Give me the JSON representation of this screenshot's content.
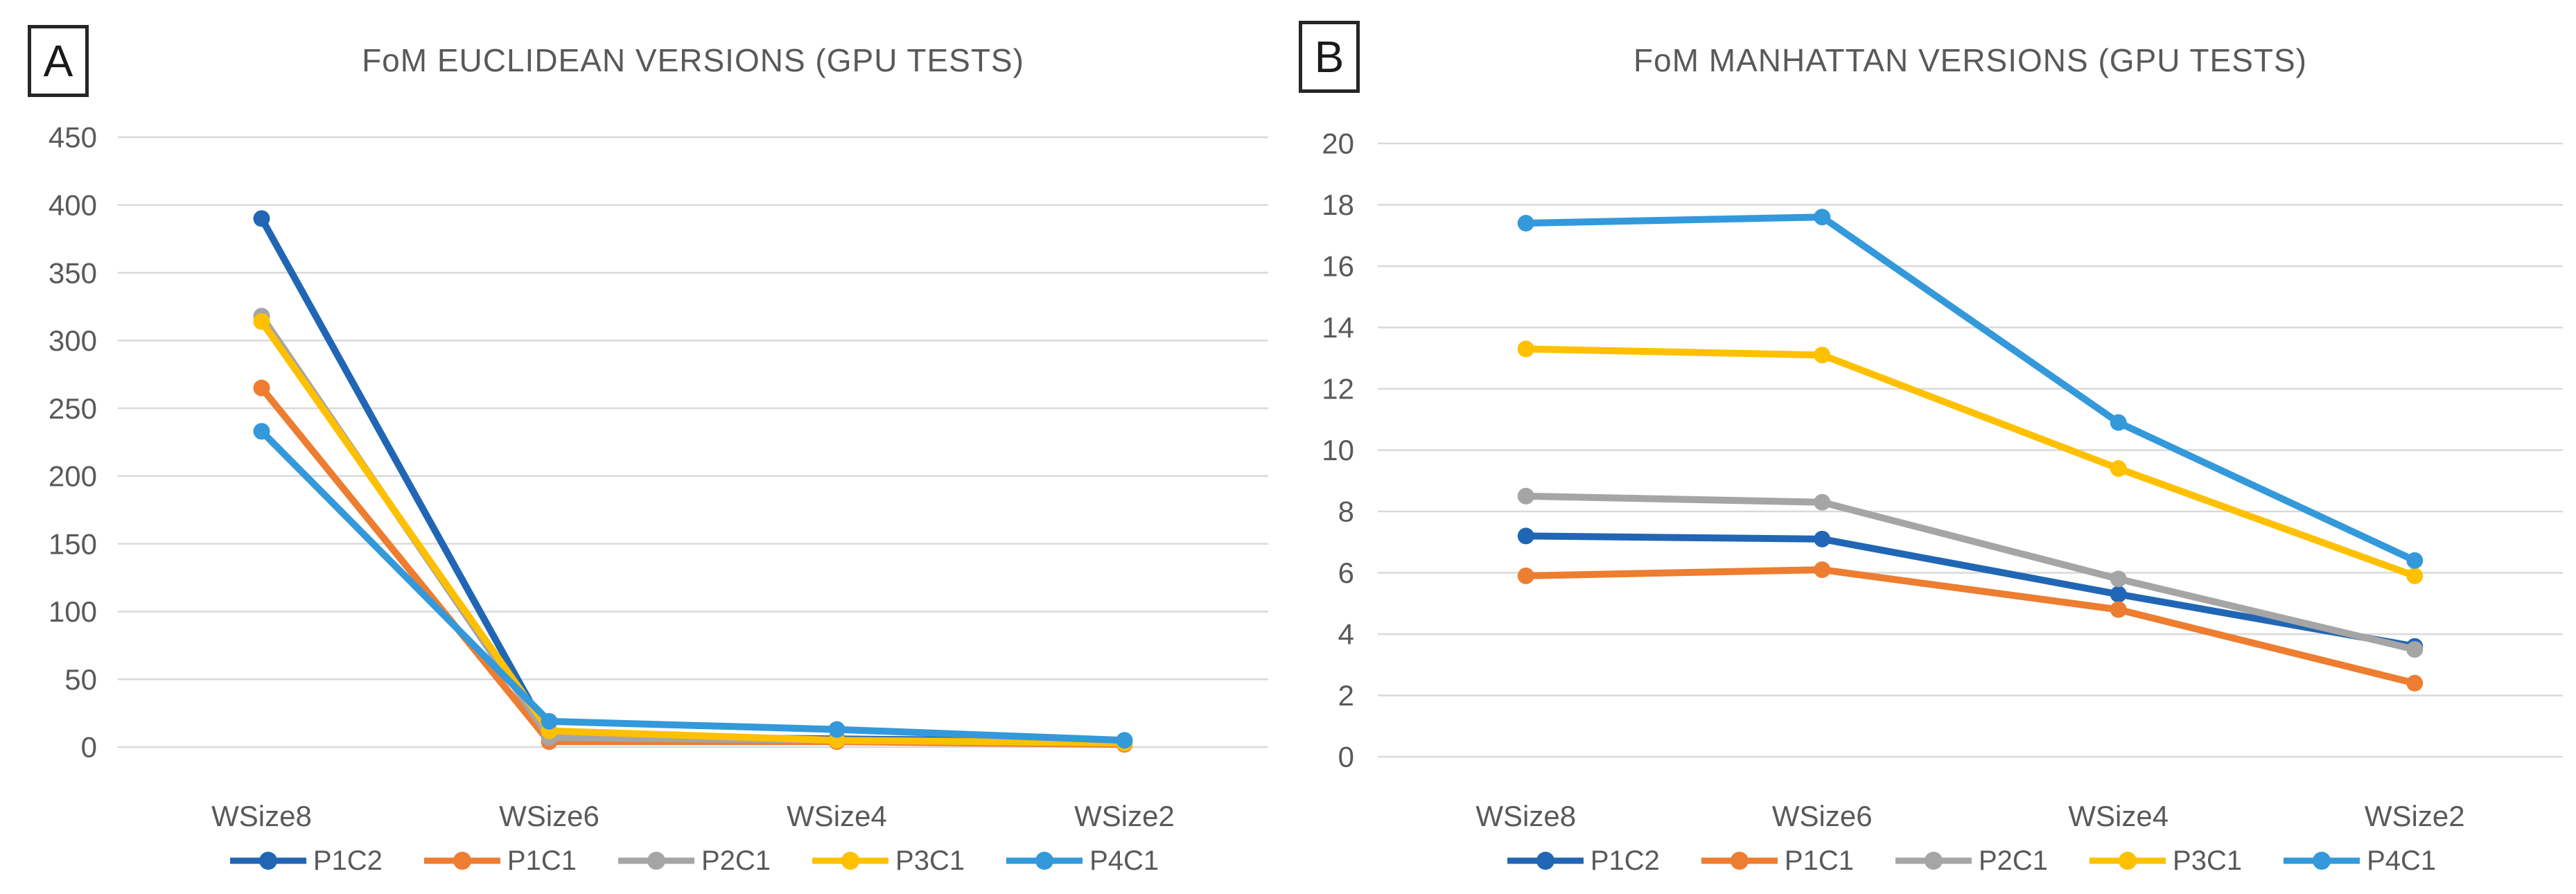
{
  "figure": {
    "background": "#FFFFFF",
    "text_color": "#595959",
    "grid_color": "#D9D9D9",
    "panel_border_color": "#262626"
  },
  "chart_data": [
    {
      "type": "line",
      "panel_label": "A",
      "title": "FoM EUCLIDEAN VERSIONS (GPU TESTS)",
      "categories": [
        "WSize8",
        "WSize6",
        "WSize4",
        "WSize2"
      ],
      "series": [
        {
          "name": "P1C2",
          "color": "#2166B4",
          "values": [
            390,
            8,
            6,
            4
          ]
        },
        {
          "name": "P1C1",
          "color": "#ED7D31",
          "values": [
            265,
            4,
            4,
            2
          ]
        },
        {
          "name": "P2C1",
          "color": "#A5A5A5",
          "values": [
            318,
            7,
            5,
            3
          ]
        },
        {
          "name": "P3C1",
          "color": "#FFC000",
          "values": [
            314,
            12,
            5,
            3
          ]
        },
        {
          "name": "P4C1",
          "color": "#3399DB",
          "values": [
            233,
            19,
            13,
            5
          ]
        }
      ],
      "ylim": [
        0,
        450
      ],
      "ytick_step": 50,
      "yticks": [
        0,
        50,
        100,
        150,
        200,
        250,
        300,
        350,
        400,
        450
      ],
      "grid": true,
      "legend_position": "bottom"
    },
    {
      "type": "line",
      "panel_label": "B",
      "title": "FoM MANHATTAN VERSIONS (GPU TESTS)",
      "categories": [
        "WSize8",
        "WSize6",
        "WSize4",
        "WSize2"
      ],
      "series": [
        {
          "name": "P1C2",
          "color": "#2166B4",
          "values": [
            7.2,
            7.1,
            5.3,
            3.6
          ]
        },
        {
          "name": "P1C1",
          "color": "#ED7D31",
          "values": [
            5.9,
            6.1,
            4.8,
            2.4
          ]
        },
        {
          "name": "P2C1",
          "color": "#A5A5A5",
          "values": [
            8.5,
            8.3,
            5.8,
            3.5
          ]
        },
        {
          "name": "P3C1",
          "color": "#FFC000",
          "values": [
            13.3,
            13.1,
            9.4,
            5.9
          ]
        },
        {
          "name": "P4C1",
          "color": "#3399DB",
          "values": [
            17.4,
            17.6,
            10.9,
            6.4
          ]
        }
      ],
      "ylim": [
        0,
        20
      ],
      "ytick_step": 2,
      "yticks": [
        0,
        2,
        4,
        6,
        8,
        10,
        12,
        14,
        16,
        18,
        20
      ],
      "grid": true,
      "legend_position": "bottom"
    }
  ]
}
